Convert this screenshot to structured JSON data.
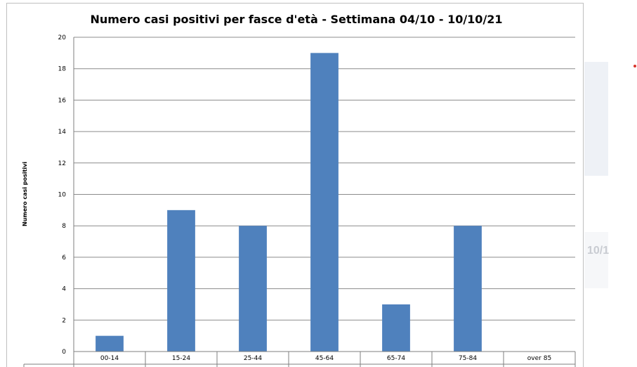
{
  "chart_data": {
    "type": "bar",
    "title": "Numero casi positivi per fasce d'età - Settimana 04/10 - 10/10/21",
    "xlabel": "",
    "ylabel": "Numero casi positivi",
    "categories": [
      "00-14",
      "15-24",
      "25-44",
      "45-64",
      "65-74",
      "75-84",
      "over 85"
    ],
    "values": [
      1,
      9,
      8,
      19,
      3,
      8,
      0
    ],
    "ylim": [
      0,
      20
    ],
    "yticks": [
      0,
      2,
      4,
      6,
      8,
      10,
      12,
      14,
      16,
      18,
      20
    ],
    "grid": true,
    "legend": "none",
    "bar_color": "#4f81bd"
  },
  "background": {
    "partial_text": "10/1",
    "bullet_color": "#d9342b"
  }
}
